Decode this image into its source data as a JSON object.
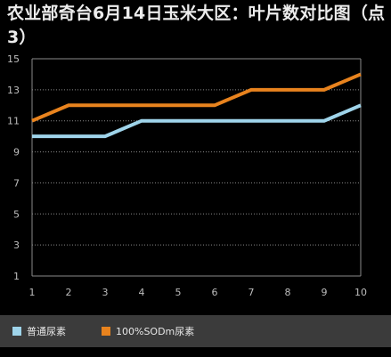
{
  "page": {
    "title": "农业部奇台6月14日玉米大区：叶片数对比图（点3）"
  },
  "colors": {
    "background": "#000000",
    "grid": "#8a8a8a",
    "axis_text": "#bdbdbd",
    "legend_band": "#3b3b3b",
    "series_1": "#9fd4ea",
    "series_2": "#e8831e"
  },
  "chart_data": {
    "type": "line",
    "title": "农业部奇台6月14日玉米大区：叶片数对比图（点3）",
    "x": [
      1,
      2,
      3,
      4,
      5,
      6,
      7,
      8,
      9,
      10
    ],
    "x_tick_labels": [
      "1",
      "2",
      "3",
      "4",
      "5",
      "6",
      "7",
      "8",
      "9",
      "10"
    ],
    "y_tick_labels": [
      "1",
      "3",
      "5",
      "7",
      "9",
      "11",
      "13",
      "15"
    ],
    "ylim": [
      1,
      15
    ],
    "grid": "horizontal dotted",
    "legend_position": "bottom",
    "series": [
      {
        "name": "普通尿素",
        "color": "#9fd4ea",
        "values": [
          10,
          10,
          10,
          11,
          11,
          11,
          11,
          11,
          11,
          12
        ]
      },
      {
        "name": "100%SODm尿素",
        "color": "#e8831e",
        "values": [
          11,
          12,
          12,
          12,
          12,
          12,
          13,
          13,
          13,
          14
        ]
      }
    ]
  },
  "legend": {
    "items": [
      {
        "label": "普通尿素",
        "color": "#9fd4ea"
      },
      {
        "label": "100%SODm尿素",
        "color": "#e8831e"
      }
    ]
  }
}
